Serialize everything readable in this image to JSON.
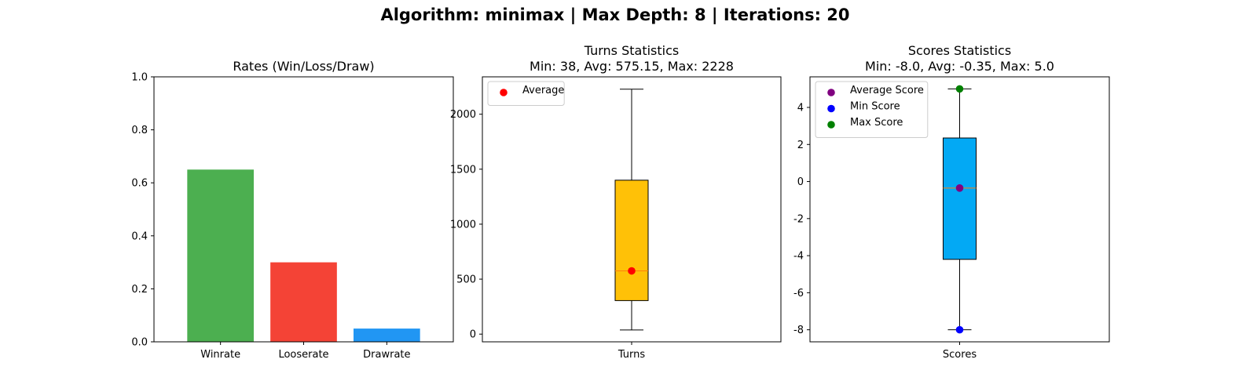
{
  "suptitle": "Algorithm: minimax | Max Depth: 8 | Iterations: 20",
  "chart_data": [
    {
      "type": "bar",
      "title": "Rates (Win/Loss/Draw)",
      "categories": [
        "Winrate",
        "Looserate",
        "Drawrate"
      ],
      "values": [
        0.65,
        0.3,
        0.05
      ],
      "colors": [
        "#4caf50",
        "#f44336",
        "#2196f3"
      ],
      "ylim": [
        0,
        1.0
      ],
      "yticks": [
        0.0,
        0.2,
        0.4,
        0.6,
        0.8,
        1.0
      ],
      "ytick_labels": [
        "0.0",
        "0.2",
        "0.4",
        "0.6",
        "0.8",
        "1.0"
      ],
      "xlabel": "",
      "ylabel": "",
      "grid": false
    },
    {
      "type": "box",
      "title_lines": [
        "Turns Statistics",
        "Min: 38, Avg: 575.15, Max: 2228"
      ],
      "category": "Turns",
      "box": {
        "whisker_low": 38,
        "q1": 305,
        "median": 575,
        "q3": 1400,
        "whisker_high": 2228
      },
      "box_color": "#ffc107",
      "median_color": "#ff7f0e",
      "points": [
        {
          "name": "Average",
          "value": 575.15,
          "color": "#ff0000"
        }
      ],
      "legend": [
        {
          "label": "Average",
          "color": "#ff0000"
        }
      ],
      "legend_position": "upper-left",
      "ylim": [
        -70,
        2340
      ],
      "yticks": [
        0,
        500,
        1000,
        1500,
        2000
      ],
      "ytick_labels": [
        "0",
        "500",
        "1000",
        "1500",
        "2000"
      ],
      "grid": false
    },
    {
      "type": "box",
      "title_lines": [
        "Scores Statistics",
        "Min: -8.0, Avg: -0.35, Max: 5.0"
      ],
      "category": "Scores",
      "box": {
        "whisker_low": -8.0,
        "q1": -4.2,
        "median": -0.35,
        "q3": 2.35,
        "whisker_high": 5.0
      },
      "box_color": "#03a9f4",
      "median_color": "#ff7f0e",
      "points": [
        {
          "name": "Average Score",
          "value": -0.35,
          "color": "#800080"
        },
        {
          "name": "Min Score",
          "value": -8.0,
          "color": "#0000ff"
        },
        {
          "name": "Max Score",
          "value": 5.0,
          "color": "#008000"
        }
      ],
      "legend": [
        {
          "label": "Average Score",
          "color": "#800080"
        },
        {
          "label": "Min Score",
          "color": "#0000ff"
        },
        {
          "label": "Max Score",
          "color": "#008000"
        }
      ],
      "legend_position": "upper-left",
      "ylim": [
        -8.65,
        5.65
      ],
      "yticks": [
        -8,
        -6,
        -4,
        -2,
        0,
        2,
        4
      ],
      "ytick_labels": [
        "-8",
        "-6",
        "-4",
        "-2",
        "0",
        "2",
        "4"
      ],
      "grid": false
    }
  ]
}
